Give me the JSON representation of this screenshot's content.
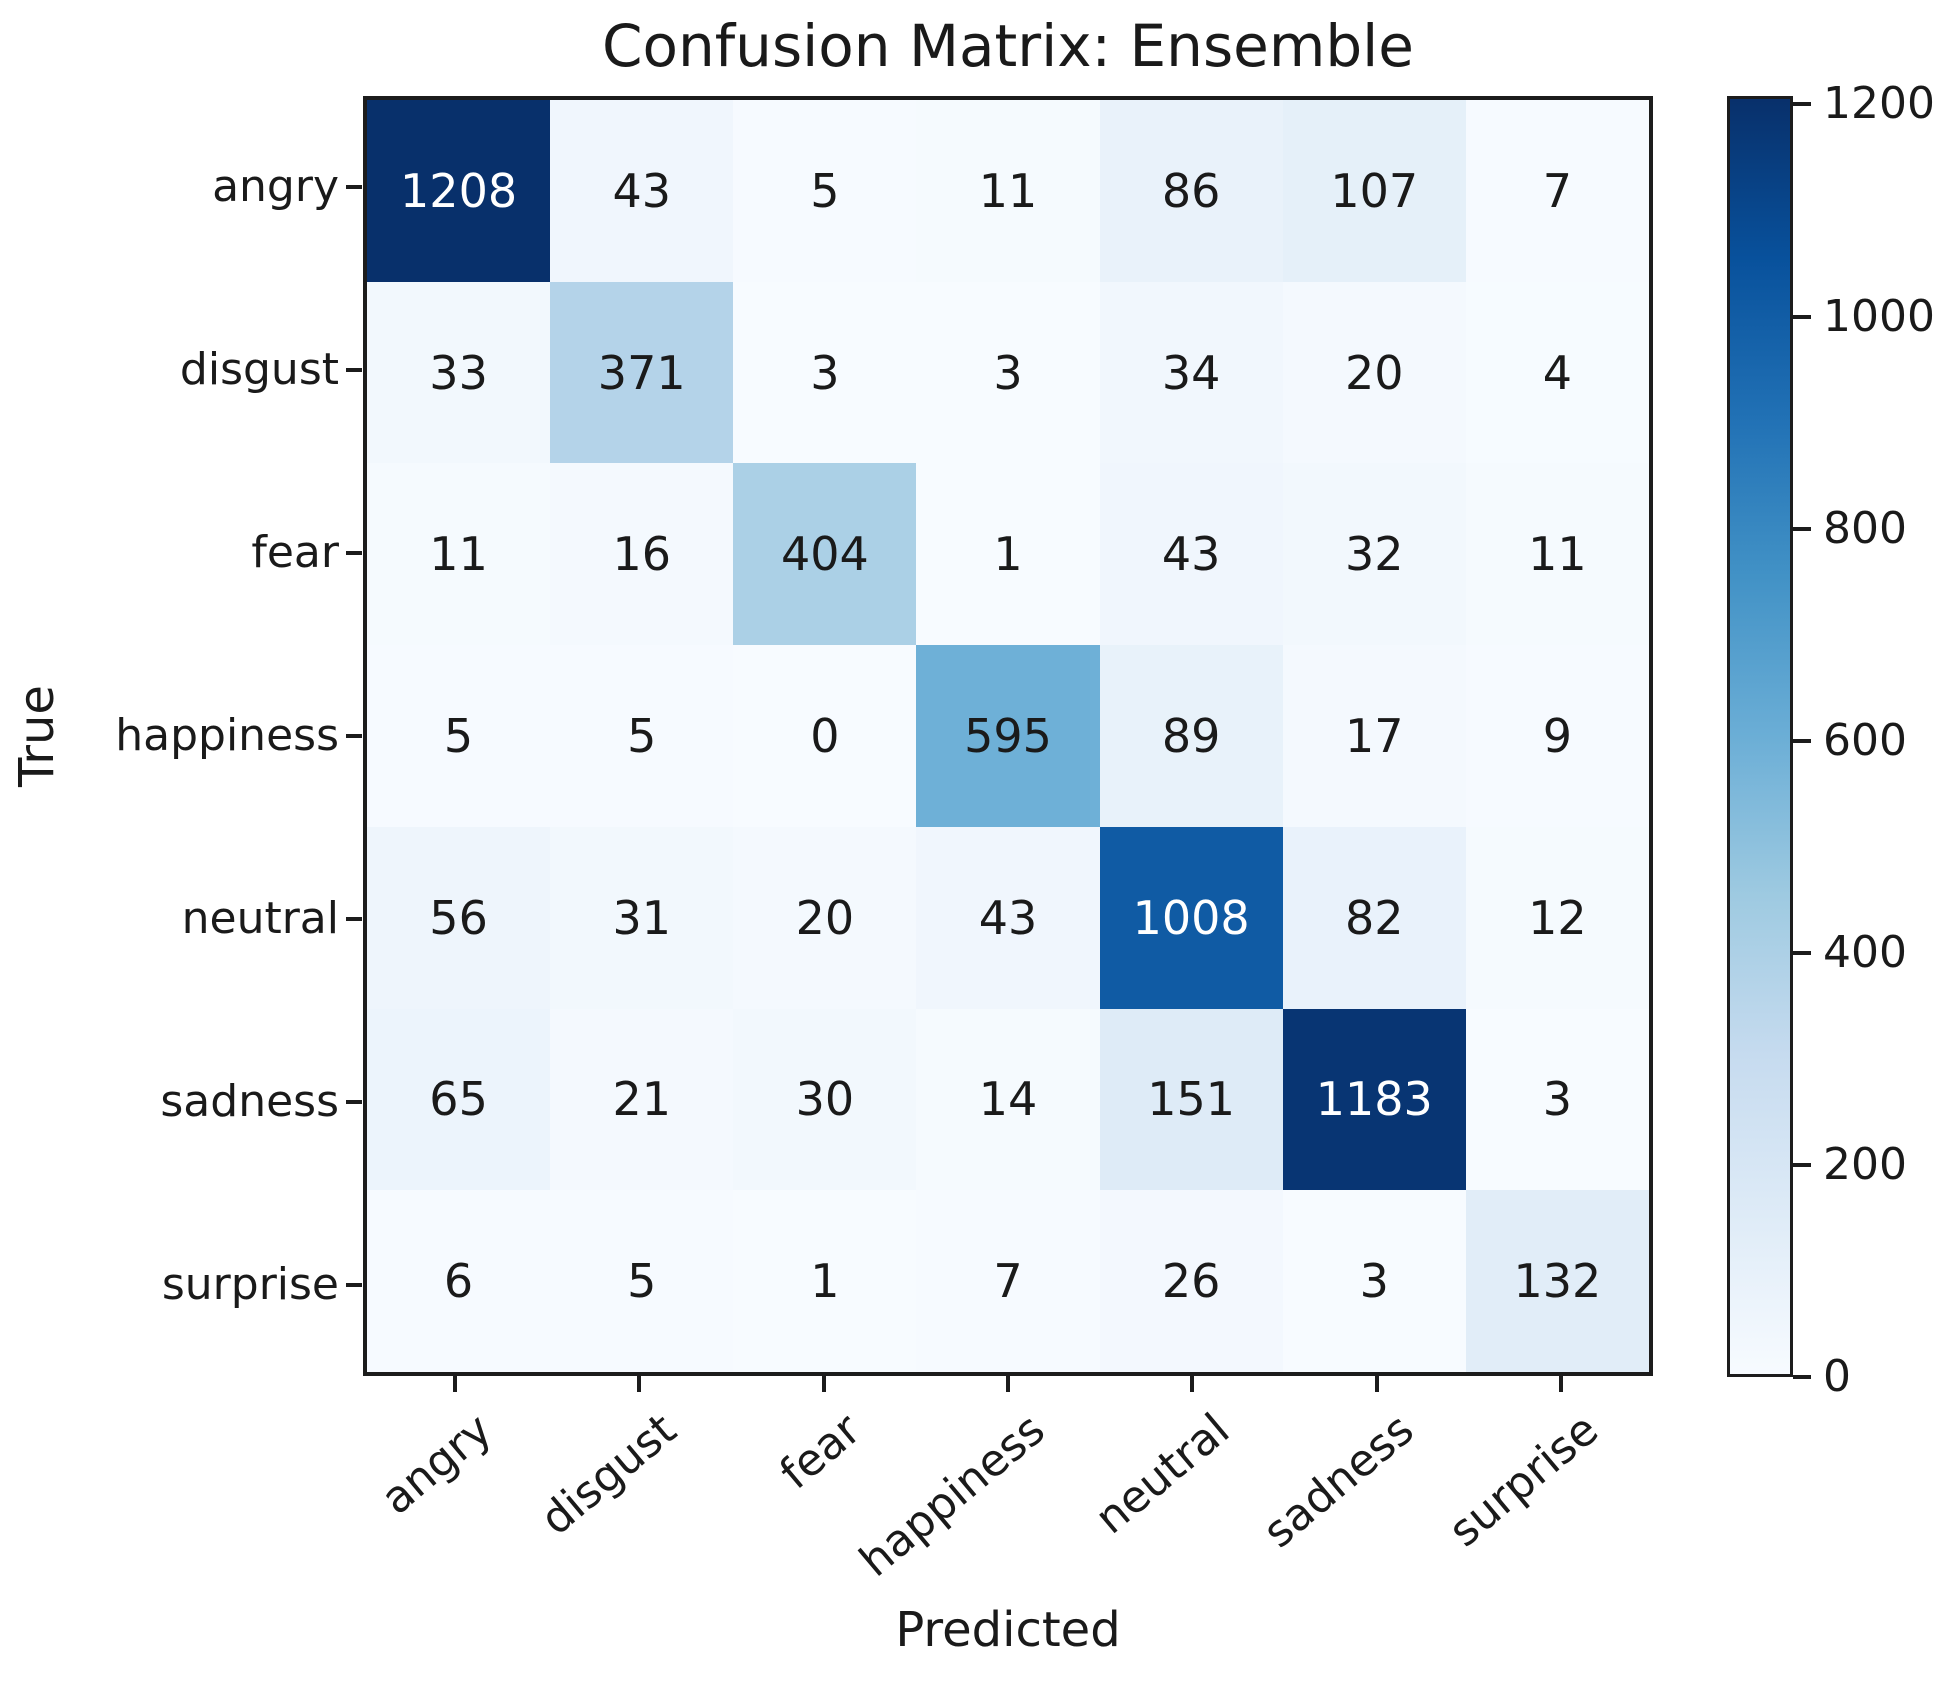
{
  "figure": {
    "title": "Confusion Matrix: Ensemble",
    "xlabel": "Predicted",
    "ylabel": "True"
  },
  "chart_data": {
    "type": "heatmap",
    "title": "Confusion Matrix: Ensemble",
    "xlabel": "Predicted",
    "ylabel": "True",
    "x_categories": [
      "angry",
      "disgust",
      "fear",
      "happiness",
      "neutral",
      "sadness",
      "surprise"
    ],
    "y_categories": [
      "angry",
      "disgust",
      "fear",
      "happiness",
      "neutral",
      "sadness",
      "surprise"
    ],
    "matrix": [
      [
        1208,
        43,
        5,
        11,
        86,
        107,
        7
      ],
      [
        33,
        371,
        3,
        3,
        34,
        20,
        4
      ],
      [
        11,
        16,
        404,
        1,
        43,
        32,
        11
      ],
      [
        5,
        5,
        0,
        595,
        89,
        17,
        9
      ],
      [
        56,
        31,
        20,
        43,
        1008,
        82,
        12
      ],
      [
        65,
        21,
        30,
        14,
        151,
        1183,
        3
      ],
      [
        6,
        5,
        1,
        7,
        26,
        3,
        132
      ]
    ],
    "vmin": 0,
    "vmax": 1208,
    "colormap": "Blues",
    "colormap_stops": [
      "#f7fbff",
      "#deebf7",
      "#c6dbef",
      "#9ecae1",
      "#6baed6",
      "#4292c6",
      "#2171b5",
      "#08519c",
      "#08306b"
    ],
    "annotation_color_dark_cells": "#ffffff",
    "annotation_color_light_cells": "#1a1a1a",
    "colorbar_ticks": [
      0,
      200,
      400,
      600,
      800,
      1000,
      1200
    ],
    "colorbar_position": "right",
    "grid": false
  }
}
